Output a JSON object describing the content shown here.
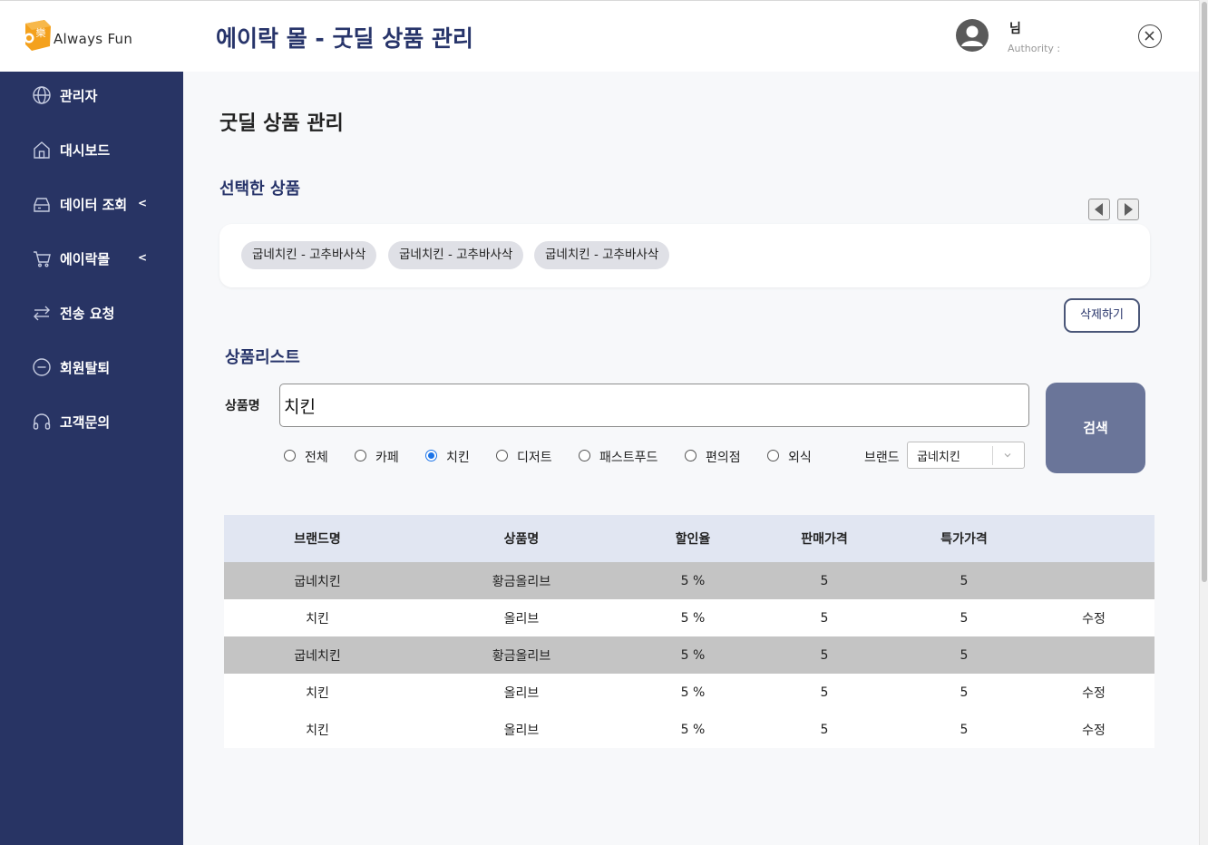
{
  "header": {
    "logo_text": "Always Fun",
    "logo_glyph": "樂",
    "title": "에이락 몰 - 굿딜 상품 관리",
    "user_name": "님",
    "user_authority": "Authority :"
  },
  "sidebar": {
    "items": [
      {
        "label": "관리자",
        "icon": "globe-icon"
      },
      {
        "label": "대시보드",
        "icon": "home-icon"
      },
      {
        "label": "데이터 조회",
        "icon": "database-icon",
        "expandable": true
      },
      {
        "label": "에이락몰",
        "icon": "cart-icon",
        "expandable": true
      },
      {
        "label": "전송 요청",
        "icon": "transfer-icon"
      },
      {
        "label": "회원탈퇴",
        "icon": "minus-circle-icon"
      },
      {
        "label": "고객문의",
        "icon": "headset-icon"
      }
    ]
  },
  "main": {
    "page_title": "굿딜 상품 관리",
    "selected_section_title": "선택한 상품",
    "selected_chips": [
      "굽네치킨 - 고추바사삭",
      "굽네치킨 - 고추바사삭",
      "굽네치킨 - 고추바사삭"
    ],
    "delete_label": "삭제하기",
    "list_section_title": "상품리스트",
    "product_name_label": "상품명",
    "search_value": "치킨",
    "search_label": "검색",
    "categories": [
      {
        "label": "전체",
        "selected": false
      },
      {
        "label": "카페",
        "selected": false
      },
      {
        "label": "치킨",
        "selected": true
      },
      {
        "label": "디저트",
        "selected": false
      },
      {
        "label": "패스트푸드",
        "selected": false
      },
      {
        "label": "편의점",
        "selected": false
      },
      {
        "label": "외식",
        "selected": false
      }
    ],
    "brand_label": "브랜드",
    "brand_value": "굽네치킨"
  },
  "table": {
    "headers": [
      "브랜드명",
      "상품명",
      "할인율",
      "판매가격",
      "특가가격",
      ""
    ],
    "rows": [
      {
        "brand": "굽네치킨",
        "product": "황금올리브",
        "discount": "5 %",
        "price": "5",
        "special": "5",
        "action": "",
        "shaded": true
      },
      {
        "brand": "치킨",
        "product": "올리브",
        "discount": "5 %",
        "price": "5",
        "special": "5",
        "action": "수정",
        "shaded": false
      },
      {
        "brand": "굽네치킨",
        "product": "황금올리브",
        "discount": "5 %",
        "price": "5",
        "special": "5",
        "action": "",
        "shaded": true
      },
      {
        "brand": "치킨",
        "product": "올리브",
        "discount": "5 %",
        "price": "5",
        "special": "5",
        "action": "수정",
        "shaded": false
      },
      {
        "brand": "치킨",
        "product": "올리브",
        "discount": "5 %",
        "price": "5",
        "special": "5",
        "action": "수정",
        "shaded": false
      }
    ]
  },
  "colors": {
    "sidebar_bg": "#283464",
    "title_navy": "#27346a",
    "search_button": "#6a7599",
    "table_header": "#e1e6f2",
    "row_shade": "#c4c4c4",
    "logo_orange": "#f4a11d"
  }
}
